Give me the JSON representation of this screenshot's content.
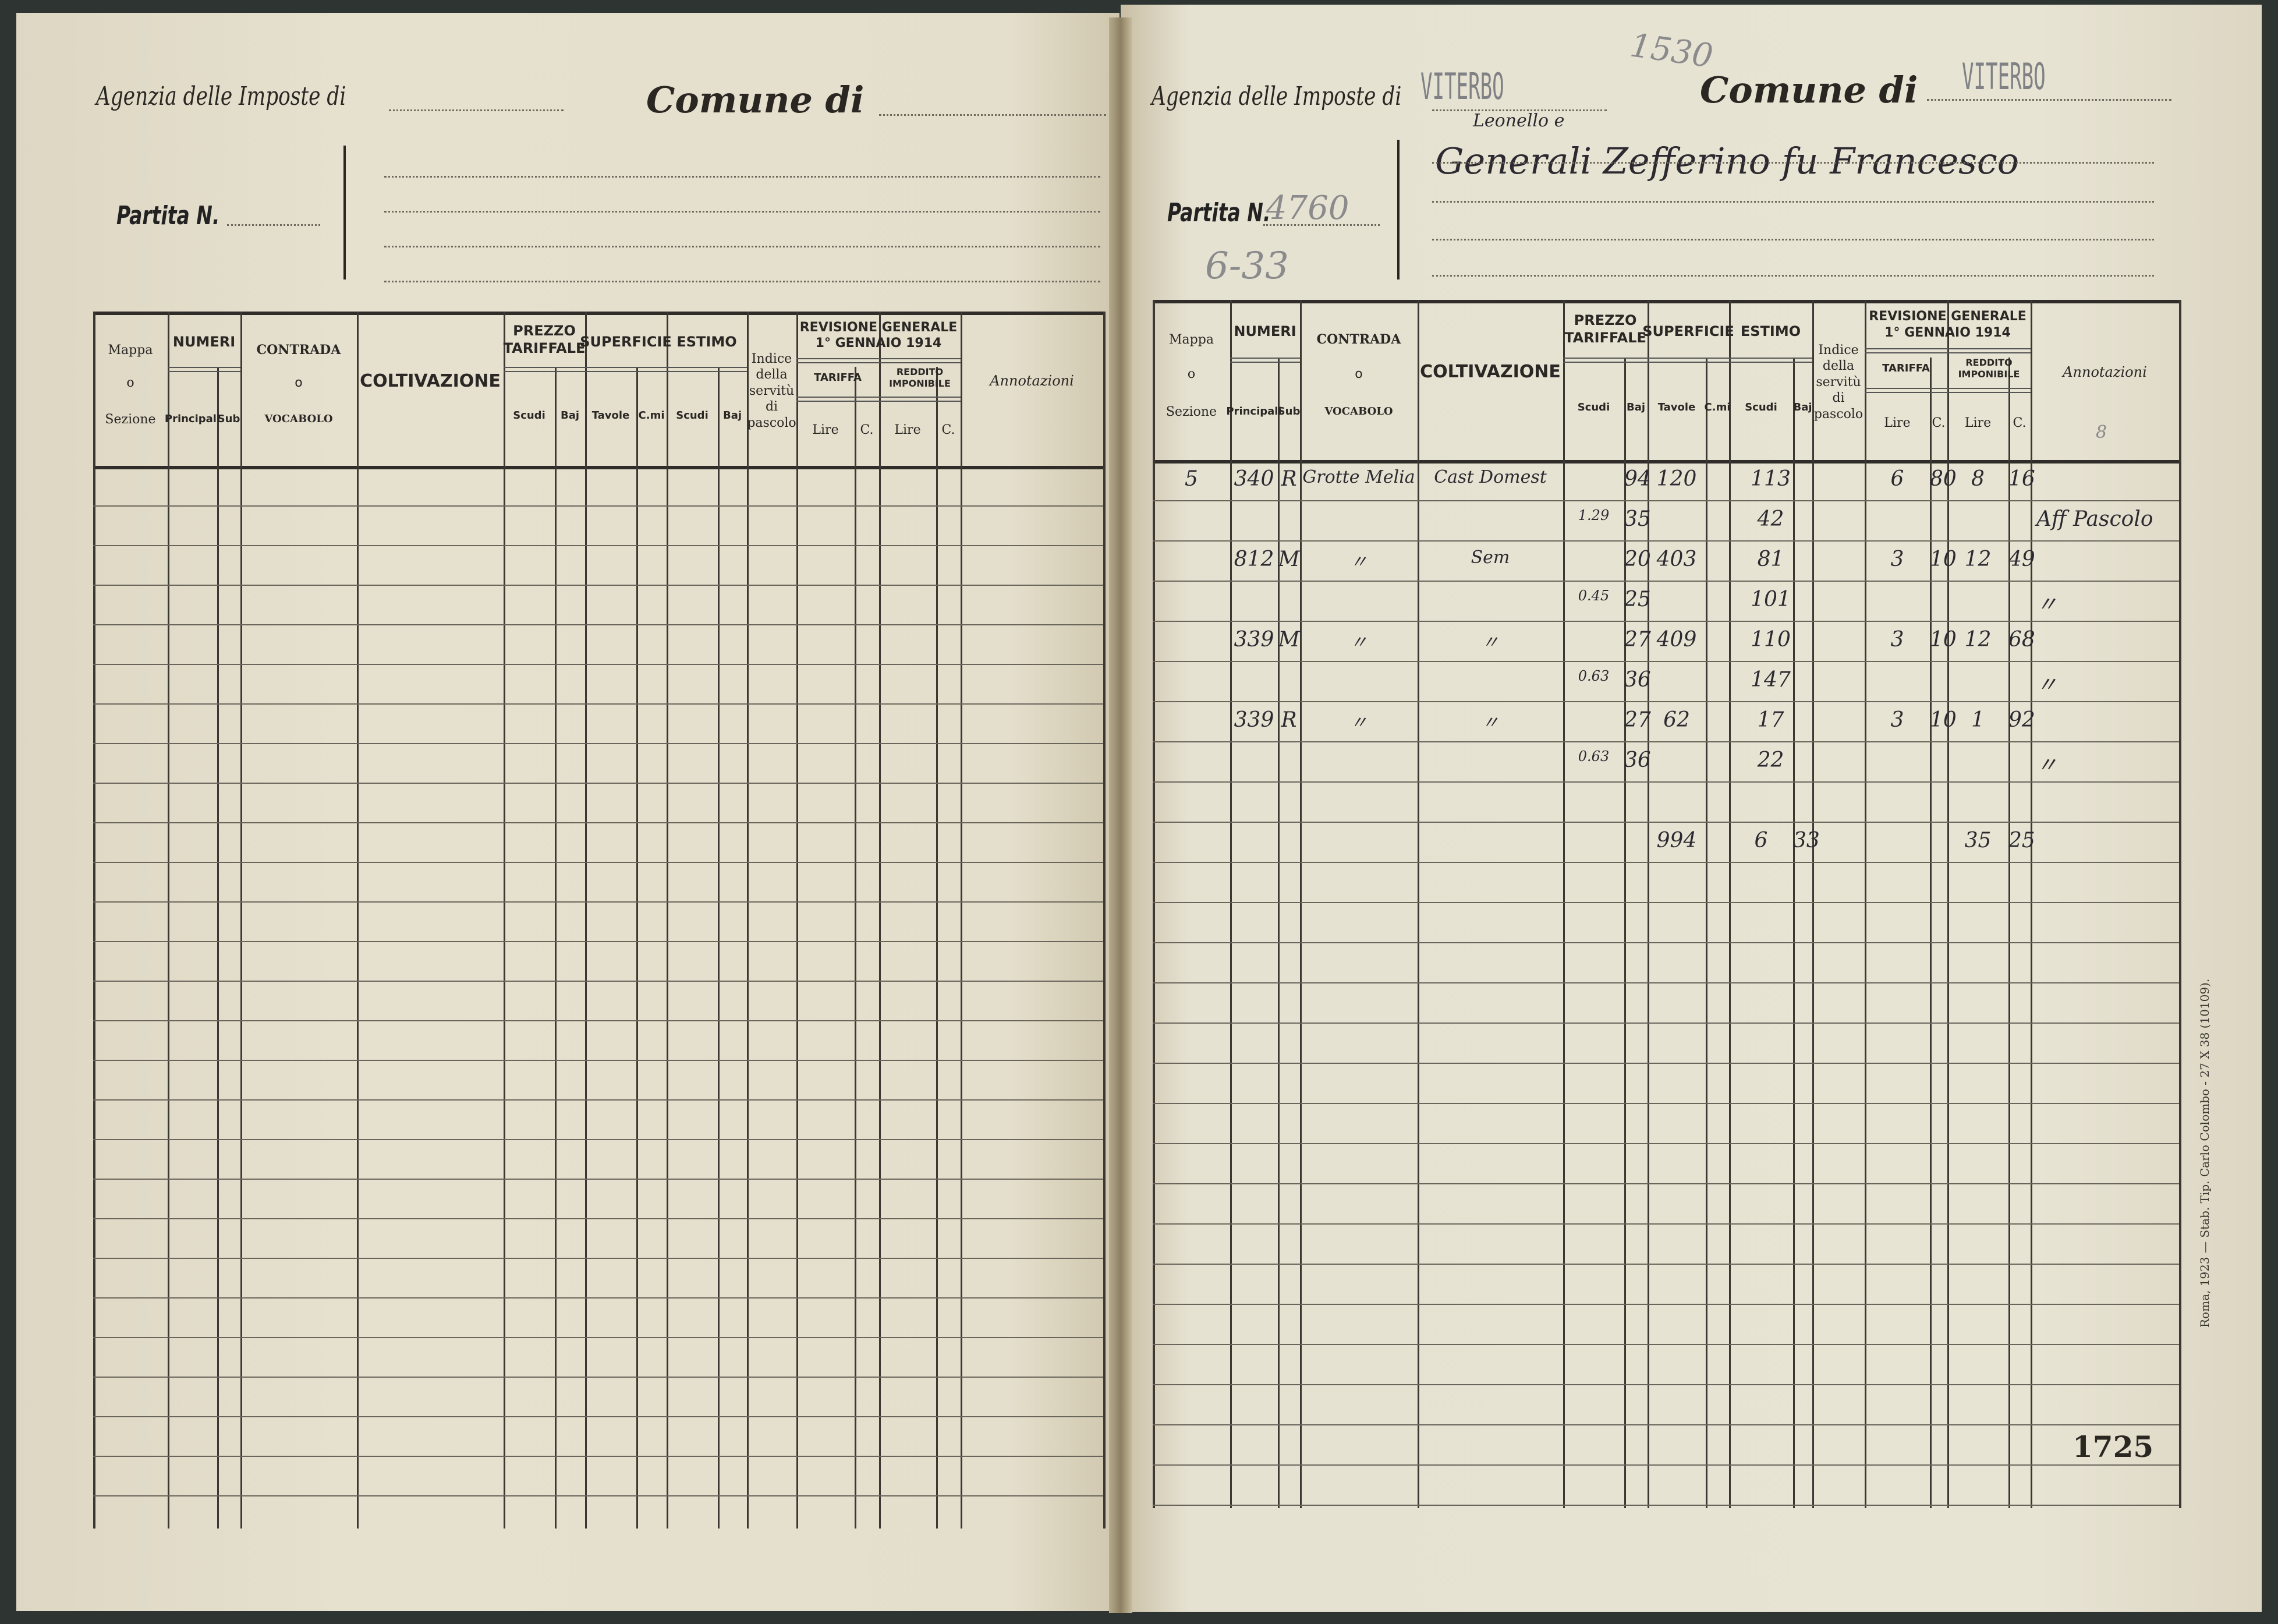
{
  "form": {
    "agenzia_label": "Agenzia delle Imposte di",
    "comune_label": "Comune di",
    "partita_label": "Partita N.",
    "headers": {
      "mappa": "Mappa",
      "mappa_o": "o",
      "sezione": "Sezione",
      "numeri": "NUMERI",
      "principali": "Principali",
      "sub": "Sub",
      "contrada": "CONTRADA",
      "contrada_o": "o",
      "vocabolo": "VOCABOLO",
      "coltivazione": "COLTIVAZIONE",
      "prezzo": "PREZZO TARIFFALE",
      "scudi": "Scudi",
      "baj": "Baj",
      "superficie": "SUPERFICIE",
      "tavole": "Tavole",
      "cmi": "C.mi",
      "estimo": "ESTIMO",
      "indice": "Indice della servitù di pascolo",
      "revisione": "REVISIONE GENERALE 1° GENNAIO 1914",
      "tariffa": "TARIFFA",
      "reddito": "REDDITO IMPONIBILE",
      "lire": "Lire",
      "c": "C.",
      "annotazioni": "Annotazioni"
    }
  },
  "right_page": {
    "archive_number": "1530",
    "agenzia_value": "VITERBO",
    "comune_value": "VITERBO",
    "owner_addition": "Leonello e",
    "owner": "Generali Zefferino fu Francesco",
    "partita_value": "4760",
    "estimo_note": "6-33",
    "annotazioni_header_mark": "8",
    "rows": [
      {
        "sezione": "5",
        "principali": "340",
        "sub": "R",
        "contrada": "Grotte Melia",
        "coltivazione": "Cast Domest",
        "prezzo_baj": "94",
        "tavole": "120",
        "estimo": "113",
        "tariffa_lire": "6",
        "tariffa_c": "80",
        "reddito_lire": "8",
        "reddito_c": "16"
      },
      {
        "prezzo_scudi": "1.29",
        "prezzo_baj": "35",
        "estimo": "42",
        "annotazioni": "Aff Pascolo"
      },
      {
        "principali": "812",
        "sub": "M",
        "contrada": "〃",
        "coltivazione": "Sem",
        "prezzo_baj": "20",
        "tavole": "403",
        "estimo": "81",
        "tariffa_lire": "3",
        "tariffa_c": "10",
        "reddito_lire": "12",
        "reddito_c": "49"
      },
      {
        "prezzo_scudi": "0.45",
        "prezzo_baj": "25",
        "estimo": "101",
        "annotazioni": "〃"
      },
      {
        "principali": "339",
        "sub": "M",
        "contrada": "〃",
        "coltivazione": "〃",
        "prezzo_baj": "27",
        "tavole": "409",
        "estimo": "110",
        "tariffa_lire": "3",
        "tariffa_c": "10",
        "reddito_lire": "12",
        "reddito_c": "68"
      },
      {
        "prezzo_scudi": "0.63",
        "prezzo_baj": "36",
        "estimo": "147",
        "annotazioni": "〃"
      },
      {
        "principali": "339",
        "sub": "R",
        "contrada": "〃",
        "coltivazione": "〃",
        "prezzo_baj": "27",
        "tavole": "62",
        "estimo": "17",
        "tariffa_lire": "3",
        "tariffa_c": "10",
        "reddito_lire": "1",
        "reddito_c": "92"
      },
      {
        "prezzo_scudi": "0.63",
        "prezzo_baj": "36",
        "estimo": "22",
        "annotazioni": "〃"
      },
      {},
      {
        "tavole": "994",
        "estimo_scudi": "6",
        "estimo_baj": "33",
        "reddito_lire": "35",
        "reddito_c": "25"
      }
    ],
    "page_number": "1725",
    "printer_note": "Roma, 1923 — Stab. Tip. Carlo Colombo - 27 X 38 (10109)."
  },
  "colors": {
    "paper": "#e4dfcd",
    "ink_print": "#2a2622",
    "ink_hand": "#2c2a30",
    "stamp": "#7f8184",
    "background": "#2e3431"
  }
}
